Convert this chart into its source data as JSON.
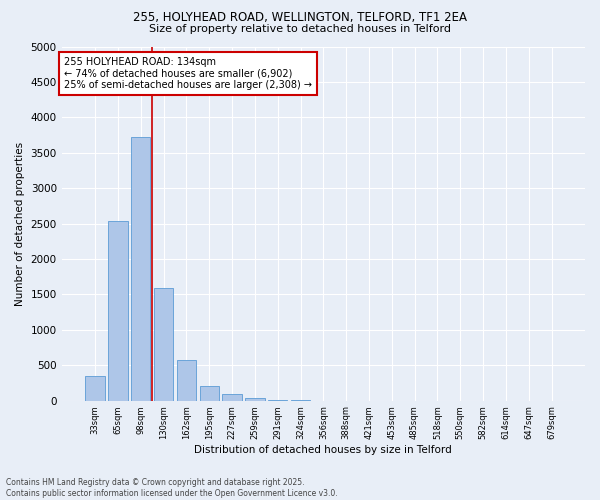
{
  "title1": "255, HOLYHEAD ROAD, WELLINGTON, TELFORD, TF1 2EA",
  "title2": "Size of property relative to detached houses in Telford",
  "xlabel": "Distribution of detached houses by size in Telford",
  "ylabel": "Number of detached properties",
  "categories": [
    "33sqm",
    "65sqm",
    "98sqm",
    "130sqm",
    "162sqm",
    "195sqm",
    "227sqm",
    "259sqm",
    "291sqm",
    "324sqm",
    "356sqm",
    "388sqm",
    "421sqm",
    "453sqm",
    "485sqm",
    "518sqm",
    "550sqm",
    "582sqm",
    "614sqm",
    "647sqm",
    "679sqm"
  ],
  "values": [
    350,
    2530,
    3720,
    1590,
    570,
    210,
    100,
    40,
    15,
    2,
    0,
    0,
    0,
    0,
    0,
    0,
    0,
    0,
    0,
    0,
    0
  ],
  "bar_color": "#aec6e8",
  "bar_edge_color": "#5b9bd5",
  "vline_x_index": 3,
  "vline_color": "#cc0000",
  "annotation_text": "255 HOLYHEAD ROAD: 134sqm\n← 74% of detached houses are smaller (6,902)\n25% of semi-detached houses are larger (2,308) →",
  "annotation_box_color": "#ffffff",
  "annotation_box_edge_color": "#cc0000",
  "footer1": "Contains HM Land Registry data © Crown copyright and database right 2025.",
  "footer2": "Contains public sector information licensed under the Open Government Licence v3.0.",
  "ylim": [
    0,
    5000
  ],
  "yticks": [
    0,
    500,
    1000,
    1500,
    2000,
    2500,
    3000,
    3500,
    4000,
    4500,
    5000
  ],
  "background_color": "#e8eef7"
}
